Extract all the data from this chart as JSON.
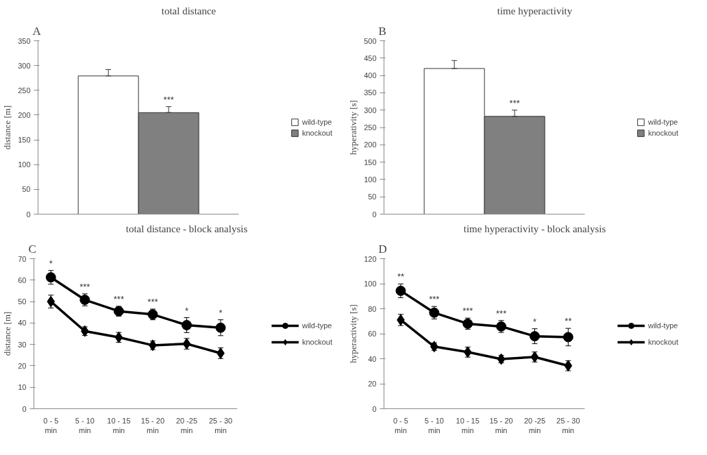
{
  "chart_data": [
    {
      "type": "bar",
      "title": "total distance",
      "ylabel": "distance [m]",
      "categories": [
        null
      ],
      "ylim": [
        0,
        350
      ],
      "yticks": [
        0,
        50,
        100,
        150,
        200,
        250,
        300,
        350
      ],
      "grid": false,
      "legend": "right",
      "tick_labels": "y",
      "series": [
        {
          "name": "wild-type",
          "color": "#ffffff",
          "values": [
            279
          ],
          "errors": [
            [
              279,
              292
            ]
          ]
        },
        {
          "name": "knockout",
          "color": "#808080",
          "values": [
            205
          ],
          "errors": [
            [
              205,
              217
            ]
          ]
        }
      ],
      "annotations": [
        "A",
        "***"
      ]
    },
    {
      "type": "bar",
      "title": "time hyperactivity",
      "ylabel": "hyperativity [s]",
      "categories": [
        null
      ],
      "ylim": [
        0,
        500
      ],
      "yticks": [
        0,
        50,
        100,
        150,
        200,
        250,
        300,
        350,
        400,
        450,
        500
      ],
      "grid": false,
      "legend": "right",
      "tick_labels": "y",
      "series": [
        {
          "name": "wild-type",
          "color": "#ffffff",
          "values": [
            420
          ],
          "errors": [
            [
              420,
              443
            ]
          ]
        },
        {
          "name": "knockout",
          "color": "#808080",
          "values": [
            282
          ],
          "errors": [
            [
              282,
              300
            ]
          ]
        }
      ],
      "annotations": [
        "B",
        "***"
      ]
    },
    {
      "type": "line",
      "title": "total distance - block analysis",
      "ylabel": "distance [m]",
      "categories": [
        "0 - 5\nmin",
        "5 - 10\nmin",
        "10 - 15\nmin",
        "15 - 20\nmin",
        "20 -25\nmin",
        "25 - 30\nmin"
      ],
      "ylim": [
        0,
        70
      ],
      "yticks": [
        0,
        10,
        20,
        30,
        40,
        50,
        60,
        70
      ],
      "grid": false,
      "legend": "right",
      "series": [
        {
          "name": "wild-type",
          "color": "#000000",
          "marker": "circle",
          "values": [
            61.3,
            50.8,
            45.5,
            44,
            39,
            37.8
          ],
          "errors": [
            3.2,
            2.8,
            2.3,
            2.5,
            3.5,
            3.7
          ]
        },
        {
          "name": "knockout",
          "color": "#000000",
          "marker": "diamond",
          "values": [
            50,
            36.2,
            33.3,
            29.6,
            30.3,
            25.9
          ],
          "errors": [
            3,
            2,
            2.3,
            2,
            2.5,
            2.5
          ]
        }
      ],
      "annotations": [
        "C",
        "*",
        "***",
        "***",
        "***",
        "*",
        "*"
      ]
    },
    {
      "type": "line",
      "title": "time hyperactivity - block analysis",
      "ylabel": "hyperactivity [s]",
      "categories": [
        "0 - 5\nmin",
        "5 - 10\nmin",
        "10 - 15\nmin",
        "15 - 20\nmin",
        "20 -25\nmin",
        "25 - 30\nmin"
      ],
      "ylim": [
        0,
        120
      ],
      "yticks": [
        0,
        20,
        40,
        60,
        80,
        100,
        120
      ],
      "grid": false,
      "legend": "right",
      "series": [
        {
          "name": "wild-type",
          "color": "#000000",
          "marker": "circle",
          "values": [
            94.3,
            76.8,
            68,
            65.8,
            58,
            57.3
          ],
          "errors": [
            5.5,
            5,
            4.5,
            4.8,
            6,
            7
          ]
        },
        {
          "name": "knockout",
          "color": "#000000",
          "marker": "diamond",
          "values": [
            71,
            49.7,
            45.3,
            39.7,
            41.4,
            34.4
          ],
          "errors": [
            4.5,
            3,
            4,
            3,
            4,
            4
          ]
        }
      ],
      "annotations": [
        "D",
        "**",
        "***",
        "***",
        "***",
        "*",
        "**"
      ]
    }
  ]
}
